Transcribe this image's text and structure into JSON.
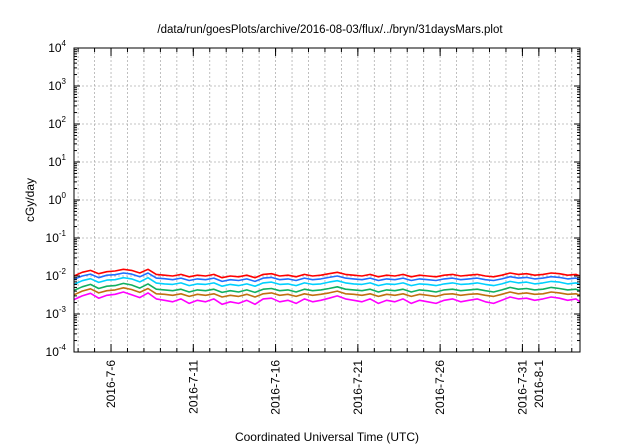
{
  "chart_data": {
    "type": "line",
    "title": "/data/run/goesPlots/archive/2016-08-03/flux/../bryn/31daysMars.plot",
    "xlabel": "Coordinated Universal Time (UTC)",
    "ylabel": "cGy/day",
    "yscale": "log",
    "ylim": [
      0.0001,
      10000
    ],
    "xlim": [
      "2016-07-03T18:00",
      "2016-08-03T12:00"
    ],
    "grid": true,
    "legend": "none",
    "y_ticks": [
      {
        "value": 0.0001,
        "base": "10",
        "exp": "-4"
      },
      {
        "value": 0.001,
        "base": "10",
        "exp": "-3"
      },
      {
        "value": 0.01,
        "base": "10",
        "exp": "-2"
      },
      {
        "value": 0.1,
        "base": "10",
        "exp": "-1"
      },
      {
        "value": 1,
        "base": "10",
        "exp": "0"
      },
      {
        "value": 10,
        "base": "10",
        "exp": "1"
      },
      {
        "value": 100,
        "base": "10",
        "exp": "2"
      },
      {
        "value": 1000,
        "base": "10",
        "exp": "3"
      },
      {
        "value": 10000,
        "base": "10",
        "exp": "4"
      }
    ],
    "x_ticks": [
      {
        "label": "2016-7-6",
        "value": "2016-07-06"
      },
      {
        "label": "2016-7-11",
        "value": "2016-07-11"
      },
      {
        "label": "2016-7-16",
        "value": "2016-07-16"
      },
      {
        "label": "2016-7-21",
        "value": "2016-07-21"
      },
      {
        "label": "2016-7-26",
        "value": "2016-07-26"
      },
      {
        "label": "2016-7-31",
        "value": "2016-07-31"
      },
      {
        "label": "2016-8-1",
        "value": "2016-08-01"
      }
    ],
    "x": [
      "2016-07-03T18:00",
      "2016-07-04T06:00",
      "2016-07-04T18:00",
      "2016-07-05T06:00",
      "2016-07-05T18:00",
      "2016-07-06T06:00",
      "2016-07-06T18:00",
      "2016-07-07T06:00",
      "2016-07-07T18:00",
      "2016-07-08T06:00",
      "2016-07-08T18:00",
      "2016-07-09T06:00",
      "2016-07-09T18:00",
      "2016-07-10T06:00",
      "2016-07-10T18:00",
      "2016-07-11T06:00",
      "2016-07-11T18:00",
      "2016-07-12T06:00",
      "2016-07-12T18:00",
      "2016-07-13T06:00",
      "2016-07-13T18:00",
      "2016-07-14T06:00",
      "2016-07-14T18:00",
      "2016-07-15T06:00",
      "2016-07-15T18:00",
      "2016-07-16T06:00",
      "2016-07-16T18:00",
      "2016-07-17T06:00",
      "2016-07-17T18:00",
      "2016-07-18T06:00",
      "2016-07-18T18:00",
      "2016-07-19T06:00",
      "2016-07-19T18:00",
      "2016-07-20T06:00",
      "2016-07-20T18:00",
      "2016-07-21T06:00",
      "2016-07-21T18:00",
      "2016-07-22T06:00",
      "2016-07-22T18:00",
      "2016-07-23T06:00",
      "2016-07-23T18:00",
      "2016-07-24T06:00",
      "2016-07-24T18:00",
      "2016-07-25T06:00",
      "2016-07-25T18:00",
      "2016-07-26T06:00",
      "2016-07-26T18:00",
      "2016-07-27T06:00",
      "2016-07-27T18:00",
      "2016-07-28T06:00",
      "2016-07-28T18:00",
      "2016-07-29T06:00",
      "2016-07-29T18:00",
      "2016-07-30T06:00",
      "2016-07-30T18:00",
      "2016-07-31T06:00",
      "2016-07-31T18:00",
      "2016-08-01T06:00",
      "2016-08-01T18:00",
      "2016-08-02T06:00",
      "2016-08-02T18:00",
      "2016-08-03T06:00",
      "2016-08-03T12:00"
    ],
    "series": [
      {
        "color": "#ff0000",
        "values": [
          0.01,
          0.0125,
          0.014,
          0.0115,
          0.013,
          0.0135,
          0.015,
          0.014,
          0.012,
          0.015,
          0.011,
          0.0105,
          0.01,
          0.011,
          0.0095,
          0.0105,
          0.01,
          0.011,
          0.009,
          0.01,
          0.0095,
          0.0105,
          0.009,
          0.011,
          0.0115,
          0.01,
          0.0105,
          0.0095,
          0.011,
          0.01,
          0.0105,
          0.0115,
          0.0125,
          0.011,
          0.0105,
          0.01,
          0.011,
          0.0095,
          0.0105,
          0.01,
          0.011,
          0.0095,
          0.0105,
          0.01,
          0.0095,
          0.0105,
          0.011,
          0.01,
          0.0105,
          0.011,
          0.01,
          0.0095,
          0.0105,
          0.012,
          0.011,
          0.0115,
          0.0105,
          0.011,
          0.012,
          0.0115,
          0.0105,
          0.011,
          0.01
        ]
      },
      {
        "color": "#1f6fff",
        "values": [
          0.0082,
          0.01,
          0.0112,
          0.009,
          0.0105,
          0.0108,
          0.012,
          0.0112,
          0.0095,
          0.012,
          0.0088,
          0.0085,
          0.008,
          0.0088,
          0.0076,
          0.0084,
          0.008,
          0.0088,
          0.0072,
          0.008,
          0.0076,
          0.0084,
          0.0072,
          0.0088,
          0.0092,
          0.008,
          0.0084,
          0.0076,
          0.0088,
          0.008,
          0.0084,
          0.0092,
          0.01,
          0.0088,
          0.0084,
          0.008,
          0.0088,
          0.0076,
          0.0084,
          0.008,
          0.0088,
          0.0076,
          0.0084,
          0.008,
          0.0076,
          0.0084,
          0.0088,
          0.008,
          0.0084,
          0.0088,
          0.008,
          0.0076,
          0.0084,
          0.0096,
          0.0088,
          0.0092,
          0.0084,
          0.0088,
          0.0096,
          0.0092,
          0.0084,
          0.0088,
          0.008
        ]
      },
      {
        "color": "#00d0ff",
        "values": [
          0.006,
          0.0075,
          0.0085,
          0.0068,
          0.0078,
          0.008,
          0.009,
          0.0084,
          0.007,
          0.009,
          0.0065,
          0.0062,
          0.006,
          0.0066,
          0.0056,
          0.0062,
          0.006,
          0.0066,
          0.0054,
          0.006,
          0.0056,
          0.0062,
          0.0054,
          0.0066,
          0.0069,
          0.006,
          0.0062,
          0.0056,
          0.0066,
          0.006,
          0.0062,
          0.0069,
          0.0075,
          0.0066,
          0.0062,
          0.006,
          0.0066,
          0.0056,
          0.0062,
          0.006,
          0.0066,
          0.0056,
          0.0062,
          0.006,
          0.0056,
          0.0062,
          0.0066,
          0.006,
          0.0062,
          0.0066,
          0.006,
          0.0056,
          0.0062,
          0.0072,
          0.0066,
          0.0069,
          0.0062,
          0.0066,
          0.0072,
          0.0069,
          0.0062,
          0.0066,
          0.006
        ]
      },
      {
        "color": "#10b060",
        "values": [
          0.0042,
          0.0052,
          0.006,
          0.0047,
          0.0054,
          0.0056,
          0.0064,
          0.0058,
          0.0048,
          0.0062,
          0.0045,
          0.0043,
          0.0041,
          0.0045,
          0.0038,
          0.0043,
          0.0041,
          0.0045,
          0.0037,
          0.0041,
          0.0038,
          0.0043,
          0.0037,
          0.0045,
          0.0047,
          0.0041,
          0.0043,
          0.0038,
          0.0045,
          0.0041,
          0.0043,
          0.0047,
          0.0052,
          0.0045,
          0.0043,
          0.0041,
          0.0045,
          0.0038,
          0.0043,
          0.0041,
          0.0045,
          0.0038,
          0.0043,
          0.0041,
          0.0038,
          0.0043,
          0.0045,
          0.0041,
          0.0043,
          0.0045,
          0.0041,
          0.0038,
          0.0043,
          0.005,
          0.0045,
          0.0047,
          0.0043,
          0.0045,
          0.005,
          0.0047,
          0.0043,
          0.0045,
          0.0041
        ]
      },
      {
        "color": "#c07010",
        "values": [
          0.0032,
          0.004,
          0.0046,
          0.0036,
          0.0041,
          0.0043,
          0.0049,
          0.0044,
          0.0037,
          0.0047,
          0.0034,
          0.0033,
          0.0031,
          0.0034,
          0.0029,
          0.0033,
          0.0031,
          0.0034,
          0.0028,
          0.0031,
          0.0029,
          0.0033,
          0.0028,
          0.0034,
          0.0036,
          0.0031,
          0.0033,
          0.0029,
          0.0034,
          0.0031,
          0.0033,
          0.0036,
          0.004,
          0.0034,
          0.0033,
          0.0031,
          0.0034,
          0.0029,
          0.0033,
          0.0031,
          0.0034,
          0.0029,
          0.0033,
          0.0031,
          0.0029,
          0.0033,
          0.0034,
          0.0031,
          0.0033,
          0.0034,
          0.0031,
          0.0029,
          0.0033,
          0.0038,
          0.0034,
          0.0036,
          0.0033,
          0.0034,
          0.0038,
          0.0036,
          0.0033,
          0.0034,
          0.0031
        ]
      },
      {
        "color": "#ff00ff",
        "values": [
          0.0024,
          0.003,
          0.0035,
          0.0026,
          0.0031,
          0.0033,
          0.0038,
          0.0032,
          0.0027,
          0.0036,
          0.0025,
          0.0023,
          0.0021,
          0.0025,
          0.0019,
          0.0023,
          0.0021,
          0.0025,
          0.0018,
          0.0021,
          0.0019,
          0.0023,
          0.0018,
          0.0025,
          0.0026,
          0.0021,
          0.0023,
          0.0019,
          0.0025,
          0.0021,
          0.0023,
          0.0026,
          0.003,
          0.0025,
          0.0023,
          0.0021,
          0.0025,
          0.0019,
          0.0023,
          0.0021,
          0.0025,
          0.0019,
          0.0023,
          0.0021,
          0.0019,
          0.0023,
          0.0025,
          0.0021,
          0.0023,
          0.0025,
          0.0021,
          0.0019,
          0.0023,
          0.0028,
          0.0025,
          0.0026,
          0.0023,
          0.0025,
          0.0028,
          0.0026,
          0.0023,
          0.0025,
          0.0021
        ]
      }
    ]
  }
}
